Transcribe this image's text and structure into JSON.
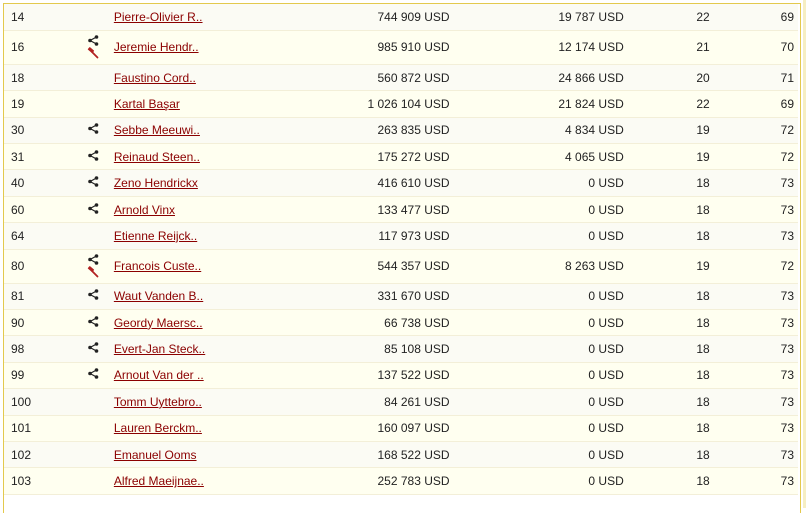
{
  "rows": [
    {
      "num": "14",
      "name": "Pierre-Olivier R..",
      "share": false,
      "gavel": false,
      "value": "744 909 USD",
      "prize": "19 787 USD",
      "age": "22",
      "rating": "69"
    },
    {
      "num": "16",
      "name": "Jeremie Hendr..",
      "share": true,
      "gavel": true,
      "value": "985 910 USD",
      "prize": "12 174 USD",
      "age": "21",
      "rating": "70"
    },
    {
      "num": "18",
      "name": "Faustino Cord..",
      "share": false,
      "gavel": false,
      "value": "560 872 USD",
      "prize": "24 866 USD",
      "age": "20",
      "rating": "71"
    },
    {
      "num": "19",
      "name": "Kartal Başar",
      "share": false,
      "gavel": false,
      "value": "1 026 104 USD",
      "prize": "21 824 USD",
      "age": "22",
      "rating": "69"
    },
    {
      "num": "30",
      "name": "Sebbe Meeuwi..",
      "share": true,
      "gavel": false,
      "value": "263 835 USD",
      "prize": "4 834 USD",
      "age": "19",
      "rating": "72"
    },
    {
      "num": "31",
      "name": "Reinaud Steen..",
      "share": true,
      "gavel": false,
      "value": "175 272 USD",
      "prize": "4 065 USD",
      "age": "19",
      "rating": "72"
    },
    {
      "num": "40",
      "name": "Zeno Hendrickx",
      "share": true,
      "gavel": false,
      "value": "416 610 USD",
      "prize": "0 USD",
      "age": "18",
      "rating": "73"
    },
    {
      "num": "60",
      "name": "Arnold Vinx",
      "share": true,
      "gavel": false,
      "value": "133 477 USD",
      "prize": "0 USD",
      "age": "18",
      "rating": "73"
    },
    {
      "num": "64",
      "name": "Etienne Reijck..",
      "share": false,
      "gavel": false,
      "value": "117 973 USD",
      "prize": "0 USD",
      "age": "18",
      "rating": "73"
    },
    {
      "num": "80",
      "name": "Francois Custe..",
      "share": true,
      "gavel": true,
      "value": "544 357 USD",
      "prize": "8 263 USD",
      "age": "19",
      "rating": "72"
    },
    {
      "num": "81",
      "name": "Waut Vanden B..",
      "share": true,
      "gavel": false,
      "value": "331 670 USD",
      "prize": "0 USD",
      "age": "18",
      "rating": "73"
    },
    {
      "num": "90",
      "name": "Geordy Maersc..",
      "share": true,
      "gavel": false,
      "value": "66 738 USD",
      "prize": "0 USD",
      "age": "18",
      "rating": "73"
    },
    {
      "num": "98",
      "name": "Evert-Jan Steck..",
      "share": true,
      "gavel": false,
      "value": "85 108 USD",
      "prize": "0 USD",
      "age": "18",
      "rating": "73"
    },
    {
      "num": "99",
      "name": "Arnout Van der ..",
      "share": true,
      "gavel": false,
      "value": "137 522 USD",
      "prize": "0 USD",
      "age": "18",
      "rating": "73"
    },
    {
      "num": "100",
      "name": "Tomm Uyttebro..",
      "share": false,
      "gavel": false,
      "value": "84 261 USD",
      "prize": "0 USD",
      "age": "18",
      "rating": "73"
    },
    {
      "num": "101",
      "name": "Lauren Berckm..",
      "share": false,
      "gavel": false,
      "value": "160 097 USD",
      "prize": "0 USD",
      "age": "18",
      "rating": "73"
    },
    {
      "num": "102",
      "name": "Emanuel Ooms",
      "share": false,
      "gavel": false,
      "value": "168 522 USD",
      "prize": "0 USD",
      "age": "18",
      "rating": "73"
    },
    {
      "num": "103",
      "name": "Alfred Maeijnae..",
      "share": false,
      "gavel": false,
      "value": "252 783 USD",
      "prize": "0 USD",
      "age": "18",
      "rating": "73"
    }
  ],
  "colors": {
    "link": "#8b0000",
    "border": "#e3c94d",
    "gavel": "#b22222"
  }
}
